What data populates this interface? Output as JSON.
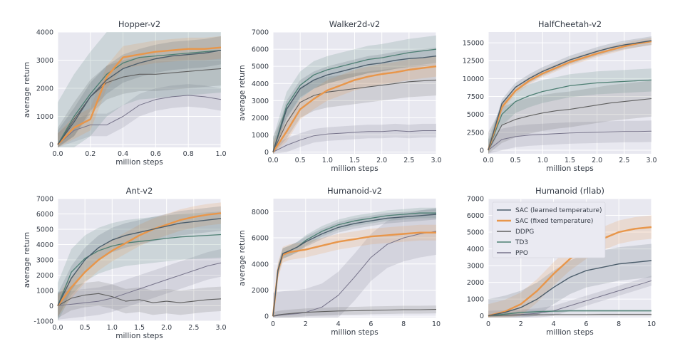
{
  "colors": {
    "SAC (learned temperature)": "#4b5d6b",
    "SAC (fixed temperature)": "#e8964a",
    "DDPG": "#5f5f5f",
    "TD3": "#4d7f73",
    "PPO": "#76738a",
    "plot_background": "#e8e8f0",
    "grid": "#ffffff"
  },
  "legend": {
    "location": "upper-left of Humanoid (rllab)",
    "entries": [
      "SAC (learned temperature)",
      "SAC (fixed temperature)",
      "DDPG",
      "TD3",
      "PPO"
    ]
  },
  "chart_data": [
    {
      "type": "line",
      "title": "Hopper-v2",
      "xlabel": "million steps",
      "ylabel": "average return",
      "xlim": [
        0,
        1.0
      ],
      "ylim": [
        -100,
        4000
      ],
      "xticks": [
        "0.0",
        "0.2",
        "0.4",
        "0.6",
        "0.8",
        "1.0"
      ],
      "yticks": [
        "0",
        "1000",
        "2000",
        "3000",
        "4000"
      ],
      "grid": true,
      "x": [
        0,
        0.1,
        0.2,
        0.3,
        0.4,
        0.5,
        0.6,
        0.7,
        0.8,
        0.9,
        1.0
      ],
      "series": [
        {
          "name": "SAC (learned temperature)",
          "values": [
            0,
            800,
            1700,
            2300,
            2700,
            2900,
            3050,
            3150,
            3200,
            3250,
            3350
          ],
          "band": 500
        },
        {
          "name": "SAC (fixed temperature)",
          "values": [
            0,
            600,
            900,
            2400,
            3100,
            3200,
            3300,
            3350,
            3400,
            3400,
            3450
          ],
          "band": 400
        },
        {
          "name": "DDPG",
          "values": [
            0,
            900,
            1700,
            2200,
            2400,
            2500,
            2500,
            2550,
            2600,
            2650,
            2700
          ],
          "band": 600
        },
        {
          "name": "TD3",
          "values": [
            0,
            1000,
            1800,
            2500,
            2900,
            3100,
            3150,
            3200,
            3250,
            3300,
            3350
          ],
          "band": 1500
        },
        {
          "name": "PPO",
          "values": [
            0,
            500,
            700,
            700,
            1000,
            1400,
            1600,
            1700,
            1750,
            1700,
            1600
          ],
          "band": 400
        }
      ]
    },
    {
      "type": "line",
      "title": "Walker2d-v2",
      "xlabel": "million steps",
      "ylabel": "average return",
      "xlim": [
        0,
        3.0
      ],
      "ylim": [
        -100,
        7000
      ],
      "xticks": [
        "0.0",
        "0.5",
        "1.0",
        "1.5",
        "2.0",
        "2.5",
        "3.0"
      ],
      "yticks": [
        "0",
        "1000",
        "2000",
        "3000",
        "4000",
        "5000",
        "6000",
        "7000"
      ],
      "grid": true,
      "x": [
        0,
        0.25,
        0.5,
        0.75,
        1.0,
        1.25,
        1.5,
        1.75,
        2.0,
        2.25,
        2.5,
        2.75,
        3.0
      ],
      "series": [
        {
          "name": "SAC (learned temperature)",
          "values": [
            0,
            2500,
            3700,
            4200,
            4500,
            4700,
            4900,
            5100,
            5200,
            5350,
            5450,
            5500,
            5600
          ],
          "band": 500
        },
        {
          "name": "SAC (fixed temperature)",
          "values": [
            0,
            1200,
            2500,
            3100,
            3600,
            3900,
            4200,
            4400,
            4550,
            4650,
            4800,
            4900,
            5000
          ],
          "band": 600
        },
        {
          "name": "DDPG",
          "values": [
            0,
            1700,
            2900,
            3300,
            3500,
            3600,
            3700,
            3800,
            3900,
            4000,
            4100,
            4150,
            4200
          ],
          "band": 900
        },
        {
          "name": "TD3",
          "values": [
            0,
            2700,
            3900,
            4500,
            4800,
            5000,
            5200,
            5400,
            5500,
            5650,
            5800,
            5900,
            6000
          ],
          "band": 800
        },
        {
          "name": "PPO",
          "values": [
            0,
            400,
            700,
            950,
            1050,
            1100,
            1150,
            1200,
            1200,
            1250,
            1200,
            1250,
            1250
          ],
          "band": 400
        }
      ]
    },
    {
      "type": "line",
      "title": "HalfCheetah-v2",
      "xlabel": "million steps",
      "ylabel": "",
      "xlim": [
        0,
        3.0
      ],
      "ylim": [
        -500,
        16500
      ],
      "xticks": [
        "0.0",
        "0.5",
        "1.0",
        "1.5",
        "2.0",
        "2.5",
        "3.0"
      ],
      "yticks": [
        "0",
        "2500",
        "5000",
        "7500",
        "10000",
        "12500",
        "15000"
      ],
      "grid": true,
      "x": [
        0,
        0.25,
        0.5,
        0.75,
        1.0,
        1.25,
        1.5,
        1.75,
        2.0,
        2.25,
        2.5,
        2.75,
        3.0
      ],
      "series": [
        {
          "name": "SAC (learned temperature)",
          "values": [
            0,
            6500,
            8800,
            10000,
            11000,
            11800,
            12600,
            13200,
            13800,
            14300,
            14700,
            15000,
            15300
          ],
          "band": 600
        },
        {
          "name": "SAC (fixed temperature)",
          "values": [
            0,
            6000,
            8300,
            9700,
            10700,
            11500,
            12300,
            12900,
            13500,
            14000,
            14500,
            14900,
            15200
          ],
          "band": 500
        },
        {
          "name": "DDPG",
          "values": [
            0,
            3500,
            4300,
            4800,
            5200,
            5500,
            5700,
            6000,
            6300,
            6600,
            6800,
            7000,
            7200
          ],
          "band": 2500
        },
        {
          "name": "TD3",
          "values": [
            0,
            5000,
            6800,
            7600,
            8200,
            8600,
            9000,
            9200,
            9400,
            9500,
            9600,
            9700,
            9800
          ],
          "band": 1600
        },
        {
          "name": "PPO",
          "values": [
            0,
            1500,
            1900,
            2100,
            2200,
            2300,
            2400,
            2450,
            2500,
            2550,
            2600,
            2600,
            2650
          ],
          "band": 1500
        }
      ]
    },
    {
      "type": "line",
      "title": "Ant-v2",
      "xlabel": "million steps",
      "ylabel": "average return",
      "xlim": [
        0,
        3.0
      ],
      "ylim": [
        -1000,
        7000
      ],
      "xticks": [
        "0.0",
        "0.5",
        "1.0",
        "1.5",
        "2.0",
        "2.5",
        "3.0"
      ],
      "yticks": [
        "-1000",
        "0",
        "1000",
        "2000",
        "3000",
        "4000",
        "5000",
        "6000",
        "7000"
      ],
      "grid": true,
      "x": [
        0,
        0.25,
        0.5,
        0.75,
        1.0,
        1.25,
        1.5,
        1.75,
        2.0,
        2.25,
        2.5,
        2.75,
        3.0
      ],
      "series": [
        {
          "name": "SAC (learned temperature)",
          "values": [
            0,
            1800,
            3000,
            3800,
            4300,
            4600,
            4800,
            5000,
            5200,
            5400,
            5500,
            5600,
            5700
          ],
          "band": 800
        },
        {
          "name": "SAC (fixed temperature)",
          "values": [
            0,
            1200,
            2200,
            3000,
            3600,
            4100,
            4600,
            5000,
            5300,
            5600,
            5800,
            5950,
            6050
          ],
          "band": 700
        },
        {
          "name": "DDPG",
          "values": [
            0,
            500,
            700,
            800,
            600,
            300,
            400,
            200,
            300,
            200,
            300,
            400,
            450
          ],
          "band": 800
        },
        {
          "name": "TD3",
          "values": [
            0,
            2200,
            3100,
            3600,
            3900,
            4100,
            4200,
            4300,
            4400,
            4500,
            4550,
            4600,
            4650
          ],
          "band": 1500
        },
        {
          "name": "PPO",
          "values": [
            0,
            100,
            200,
            300,
            500,
            800,
            1100,
            1400,
            1700,
            2000,
            2300,
            2600,
            2800
          ],
          "band": 900
        }
      ]
    },
    {
      "type": "line",
      "title": "Humanoid-v2",
      "xlabel": "million steps",
      "ylabel": "average return",
      "xlim": [
        0,
        10
      ],
      "ylim": [
        -100,
        9000
      ],
      "xticks": [
        "0",
        "2",
        "4",
        "6",
        "8",
        "10"
      ],
      "yticks": [
        "0",
        "2000",
        "4000",
        "6000",
        "8000"
      ],
      "grid": true,
      "x": [
        0,
        0.3,
        0.6,
        1,
        1.5,
        2,
        3,
        4,
        5,
        6,
        7,
        8,
        9,
        10
      ],
      "series": [
        {
          "name": "SAC (learned temperature)",
          "values": [
            0,
            3500,
            4800,
            5000,
            5300,
            5700,
            6300,
            6800,
            7100,
            7300,
            7500,
            7600,
            7700,
            7800
          ],
          "band": 400
        },
        {
          "name": "SAC (fixed temperature)",
          "values": [
            0,
            3500,
            4700,
            4900,
            5000,
            5100,
            5400,
            5700,
            5900,
            6100,
            6200,
            6300,
            6400,
            6400
          ],
          "band": 600
        },
        {
          "name": "DDPG",
          "values": [
            0,
            100,
            150,
            200,
            250,
            300,
            350,
            400,
            420,
            450,
            470,
            500,
            500,
            520
          ],
          "band": 300
        },
        {
          "name": "TD3",
          "values": [
            0,
            3500,
            4800,
            5000,
            5300,
            5800,
            6500,
            7000,
            7300,
            7500,
            7700,
            7800,
            7900,
            7900
          ],
          "band": 400
        },
        {
          "name": "PPO",
          "values": [
            0,
            50,
            100,
            150,
            200,
            300,
            700,
            1600,
            3000,
            4500,
            5500,
            6000,
            6300,
            6500
          ],
          "band": 1800
        }
      ]
    },
    {
      "type": "line",
      "title": "Humanoid (rllab)",
      "xlabel": "million steps",
      "ylabel": "",
      "xlim": [
        0,
        10
      ],
      "ylim": [
        -100,
        7000
      ],
      "xticks": [
        "0",
        "2",
        "4",
        "6",
        "8",
        "10"
      ],
      "yticks": [
        "0",
        "1000",
        "2000",
        "3000",
        "4000",
        "5000",
        "6000",
        "7000"
      ],
      "grid": true,
      "x": [
        0,
        1,
        2,
        3,
        4,
        5,
        6,
        7,
        8,
        9,
        10
      ],
      "series": [
        {
          "name": "SAC (learned temperature)",
          "values": [
            0,
            200,
            500,
            1000,
            1700,
            2300,
            2700,
            2900,
            3100,
            3200,
            3300
          ],
          "band": 1000
        },
        {
          "name": "SAC (fixed temperature)",
          "values": [
            0,
            250,
            700,
            1500,
            2500,
            3400,
            4100,
            4600,
            5000,
            5200,
            5300
          ],
          "band": 700
        },
        {
          "name": "DDPG",
          "values": [
            0,
            30,
            50,
            60,
            70,
            70,
            70,
            80,
            80,
            80,
            80
          ],
          "band": 60
        },
        {
          "name": "TD3",
          "values": [
            0,
            100,
            200,
            250,
            280,
            300,
            300,
            300,
            300,
            300,
            300
          ],
          "band": 80
        },
        {
          "name": "PPO",
          "values": [
            0,
            30,
            80,
            150,
            300,
            600,
            900,
            1200,
            1500,
            1800,
            2100
          ],
          "band": 300
        }
      ]
    }
  ]
}
